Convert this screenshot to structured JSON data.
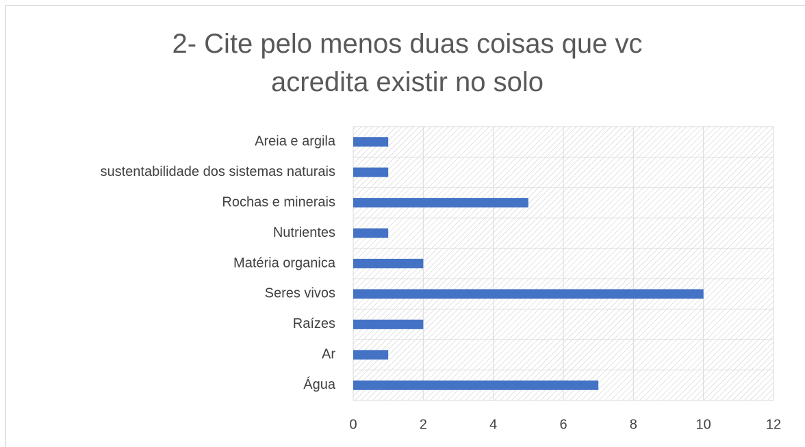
{
  "chart_data": {
    "type": "bar",
    "orientation": "horizontal",
    "title": "2- Cite pelo menos duas coisas que vc acredita existir no solo",
    "categories": [
      "Água",
      "Ar",
      "Raízes",
      "Seres vivos",
      "Matéria organica",
      "Nutrientes",
      "Rochas e minerais",
      "sustentabilidade dos sistemas naturais",
      "Areia e argila"
    ],
    "values": [
      7,
      1,
      2,
      10,
      2,
      1,
      5,
      1,
      1
    ],
    "color": "#4472c4",
    "xlim": [
      0,
      12
    ],
    "xticks": [
      0,
      2,
      4,
      6,
      8,
      10,
      12
    ],
    "grid": true
  }
}
